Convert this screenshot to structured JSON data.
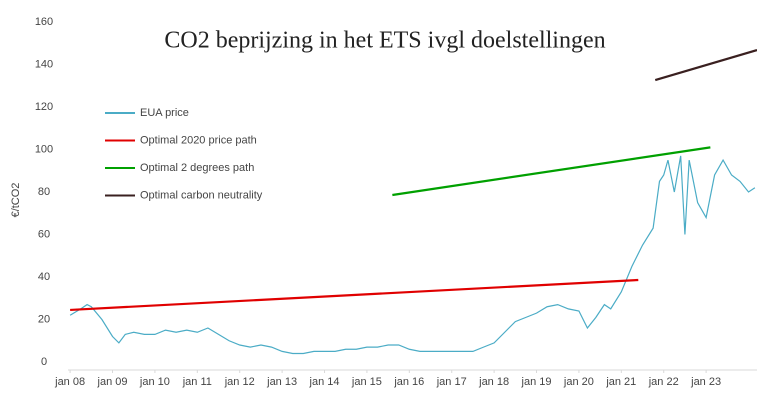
{
  "chart_data": {
    "type": "line",
    "title": "CO2 beprijzing in het ETS ivgl doelstellingen",
    "y_label": "€/tCO2",
    "xlim": [
      2007.95,
      2024.2
    ],
    "xticks": [
      {
        "value": 2008,
        "label": "jan 08"
      },
      {
        "value": 2009,
        "label": "jan 09"
      },
      {
        "value": 2010,
        "label": "jan 10"
      },
      {
        "value": 2011,
        "label": "jan 11"
      },
      {
        "value": 2012,
        "label": "jan 12"
      },
      {
        "value": 2013,
        "label": "jan 13"
      },
      {
        "value": 2014,
        "label": "jan 14"
      },
      {
        "value": 2015,
        "label": "jan 15"
      },
      {
        "value": 2016,
        "label": "jan 16"
      },
      {
        "value": 2017,
        "label": "jan 17"
      },
      {
        "value": 2018,
        "label": "jan 18"
      },
      {
        "value": 2019,
        "label": "jan 19"
      },
      {
        "value": 2020,
        "label": "jan 20"
      },
      {
        "value": 2021,
        "label": "jan 21"
      },
      {
        "value": 2022,
        "label": "jan 22"
      },
      {
        "value": 2023,
        "label": "jan 23"
      }
    ],
    "ylim": [
      0,
      160
    ],
    "yticks": [
      0,
      20,
      40,
      60,
      80,
      100,
      120,
      140,
      160
    ],
    "series": [
      {
        "name": "EUA price",
        "color": "#4bacc6",
        "x": [
          2008.0,
          2008.25,
          2008.4,
          2008.5,
          2008.75,
          2009.0,
          2009.15,
          2009.3,
          2009.5,
          2009.75,
          2010.0,
          2010.25,
          2010.5,
          2010.75,
          2011.0,
          2011.25,
          2011.5,
          2011.75,
          2012.0,
          2012.25,
          2012.5,
          2012.75,
          2013.0,
          2013.25,
          2013.5,
          2013.75,
          2014.0,
          2014.25,
          2014.5,
          2014.75,
          2015.0,
          2015.25,
          2015.5,
          2015.75,
          2016.0,
          2016.25,
          2016.5,
          2016.75,
          2017.0,
          2017.25,
          2017.5,
          2017.75,
          2018.0,
          2018.25,
          2018.5,
          2018.75,
          2019.0,
          2019.25,
          2019.5,
          2019.75,
          2020.0,
          2020.2,
          2020.4,
          2020.6,
          2020.75,
          2021.0,
          2021.25,
          2021.5,
          2021.75,
          2021.9,
          2022.0,
          2022.1,
          2022.25,
          2022.4,
          2022.5,
          2022.6,
          2022.8,
          2023.0,
          2023.2,
          2023.4,
          2023.6,
          2023.8,
          2024.0,
          2024.15
        ],
        "values": [
          22,
          25,
          27,
          26,
          20,
          12,
          9,
          13,
          14,
          13,
          13,
          15,
          14,
          15,
          14,
          16,
          13,
          10,
          8,
          7,
          8,
          7,
          5,
          4,
          4,
          5,
          5,
          5,
          6,
          6,
          7,
          7,
          8,
          8,
          6,
          5,
          5,
          5,
          5,
          5,
          5,
          7,
          9,
          14,
          19,
          21,
          23,
          26,
          27,
          25,
          24,
          16,
          21,
          27,
          25,
          33,
          45,
          55,
          63,
          85,
          88,
          95,
          80,
          97,
          60,
          95,
          75,
          68,
          88,
          95,
          88,
          85,
          80,
          82
        ]
      },
      {
        "name": "Optimal 2020 price path",
        "color": "#e00000",
        "x": [
          2008.0,
          2021.4
        ],
        "values": [
          24.5,
          38.6
        ]
      },
      {
        "name": "Optimal 2 degrees path",
        "color": "#00a000",
        "x": [
          2015.6,
          2023.1
        ],
        "values": [
          78.6,
          101
        ]
      },
      {
        "name": "Optimal carbon neutrality",
        "color": "#3a2020",
        "x": [
          2021.8,
          2024.2
        ],
        "values": [
          132.7,
          146.8
        ]
      }
    ]
  }
}
